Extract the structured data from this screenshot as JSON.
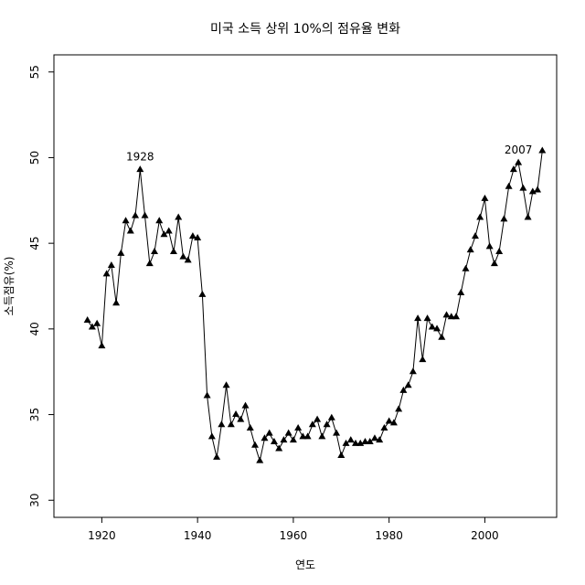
{
  "chart_data": {
    "type": "line",
    "title": "미국 소득 상위 10%의 점유율 변화",
    "xlabel": "연도",
    "ylabel": "소득점유(%)",
    "xlim": [
      1910,
      2015
    ],
    "ylim": [
      29,
      56
    ],
    "xticks": [
      "1920",
      "1940",
      "1960",
      "1980",
      "2000"
    ],
    "yticks": [
      "30",
      "35",
      "40",
      "45",
      "50",
      "55"
    ],
    "grid": false,
    "marker": "filled-triangle",
    "color": "#000000",
    "annotations": [
      {
        "text": "1928",
        "x": 1928,
        "y": 49.3
      },
      {
        "text": "2007",
        "x": 2007,
        "y": 49.7
      }
    ],
    "series": [
      {
        "x": [
          1917,
          1918,
          1919,
          1920,
          1921,
          1922,
          1923,
          1924,
          1925,
          1926,
          1927,
          1928,
          1929,
          1930,
          1931,
          1932,
          1933,
          1934,
          1935,
          1936,
          1937,
          1938,
          1939,
          1940,
          1941,
          1942,
          1943,
          1944,
          1945,
          1946,
          1947,
          1948,
          1949,
          1950,
          1951,
          1952,
          1953,
          1954,
          1955,
          1956,
          1957,
          1958,
          1959,
          1960,
          1961,
          1962,
          1963,
          1964,
          1965,
          1966,
          1967,
          1968,
          1969,
          1970,
          1971,
          1972,
          1973,
          1974,
          1975,
          1976,
          1977,
          1978,
          1979,
          1980,
          1981,
          1982,
          1983,
          1984,
          1985,
          1986,
          1987,
          1988,
          1989,
          1990,
          1991,
          1992,
          1993,
          1994,
          1995,
          1996,
          1997,
          1998,
          1999,
          2000,
          2001,
          2002,
          2003,
          2004,
          2005,
          2006,
          2007,
          2008,
          2009,
          2010,
          2011,
          2012
        ],
        "values": [
          40.5,
          40.1,
          40.3,
          39.0,
          43.2,
          43.7,
          41.5,
          44.4,
          46.3,
          45.7,
          46.6,
          49.3,
          46.6,
          43.8,
          44.5,
          46.3,
          45.5,
          45.7,
          44.5,
          46.5,
          44.2,
          44.0,
          45.4,
          45.3,
          42.0,
          36.1,
          33.7,
          32.5,
          34.4,
          36.7,
          34.4,
          35.0,
          34.7,
          35.5,
          34.2,
          33.2,
          32.3,
          33.6,
          33.9,
          33.4,
          33.0,
          33.5,
          33.9,
          33.5,
          34.2,
          33.7,
          33.7,
          34.4,
          34.7,
          33.7,
          34.4,
          34.8,
          33.9,
          32.6,
          33.3,
          33.5,
          33.3,
          33.3,
          33.4,
          33.4,
          33.6,
          33.5,
          34.2,
          34.6,
          34.5,
          35.3,
          36.4,
          36.7,
          37.5,
          40.6,
          38.2,
          40.6,
          40.1,
          40.0,
          39.5,
          40.8,
          40.7,
          40.7,
          42.1,
          43.5,
          44.6,
          45.4,
          46.5,
          47.6,
          44.8,
          43.8,
          44.5,
          46.4,
          48.3,
          49.3,
          49.7,
          48.2,
          46.5,
          48.0,
          48.1,
          50.4
        ]
      }
    ]
  }
}
